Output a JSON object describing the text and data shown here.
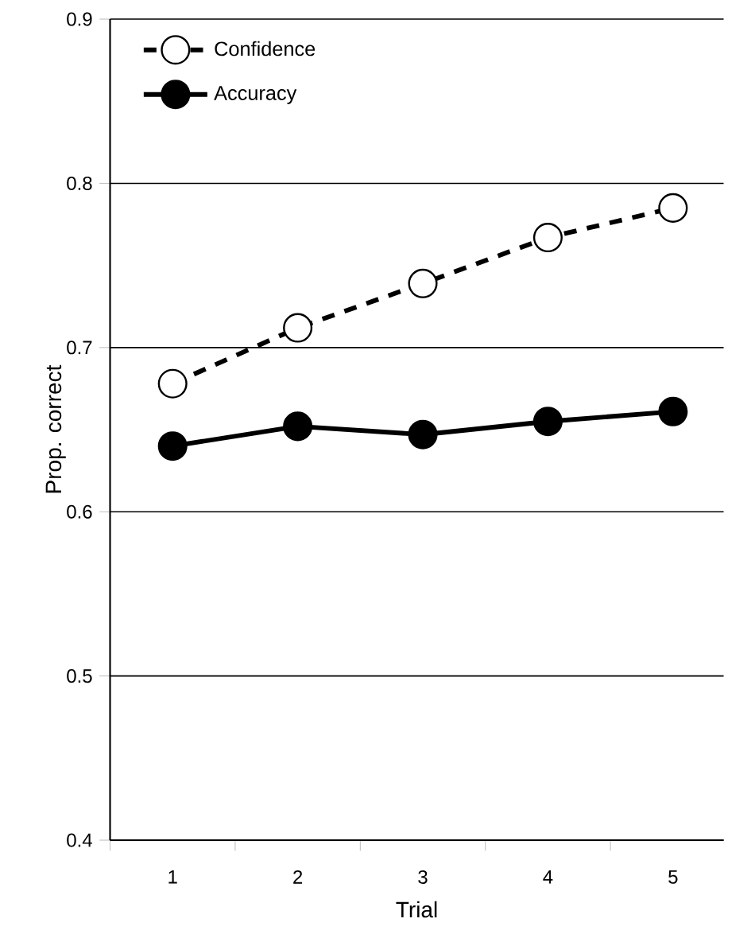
{
  "chart_data": {
    "type": "line",
    "xlabel": "Trial",
    "ylabel": "Prop. correct",
    "categories": [
      "1",
      "2",
      "3",
      "4",
      "5"
    ],
    "series": [
      {
        "name": "Confidence",
        "color": "#000000",
        "line_style": "dashed",
        "values": [
          0.678,
          0.712,
          0.739,
          0.767,
          0.785
        ]
      },
      {
        "name": "Accuracy",
        "color": "#000000",
        "line_style": "solid",
        "values": [
          0.64,
          0.652,
          0.647,
          0.655,
          0.661
        ]
      }
    ],
    "ylim": [
      0.4,
      0.9
    ],
    "yticks": [
      0.4,
      0.5,
      0.6,
      0.7,
      0.8,
      0.9
    ],
    "grid": "y",
    "legend": "top left",
    "marker": "circle"
  }
}
